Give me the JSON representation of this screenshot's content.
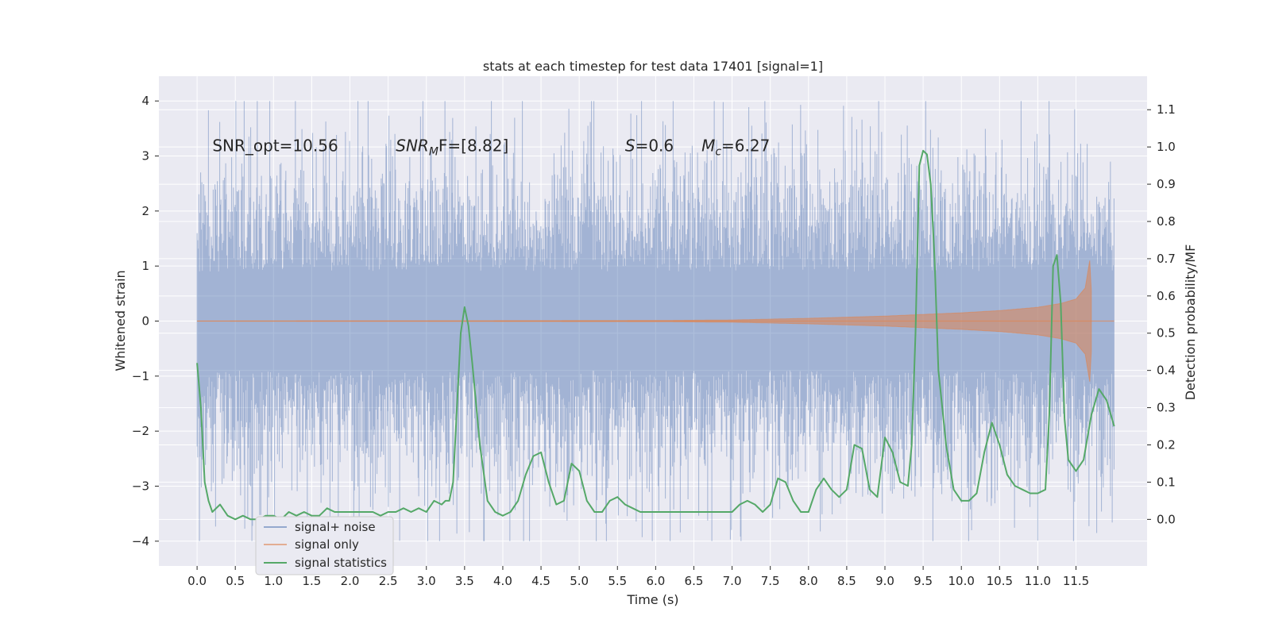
{
  "chart_data": {
    "type": "line",
    "title": "stats at each timestep for test data 17401 [signal=1]",
    "xlabel": "Time (s)",
    "ylabel": "Whitened strain",
    "ylabel_right": "Detection probability/MF",
    "xlim": [
      -0.5,
      12.43
    ],
    "ylim": [
      -4.45,
      4.45
    ],
    "ylim_right": [
      -0.125,
      1.19
    ],
    "x_ticks": [
      "0.0",
      "0.5",
      "1.0",
      "1.5",
      "2.0",
      "2.5",
      "3.0",
      "3.5",
      "4.0",
      "4.5",
      "5.0",
      "5.5",
      "6.0",
      "6.5",
      "7.0",
      "7.5",
      "8.0",
      "8.5",
      "9.0",
      "9.5",
      "10.0",
      "10.5",
      "11.0",
      "11.5"
    ],
    "y_ticks": [
      "4",
      "3",
      "2",
      "1",
      "0",
      "−1",
      "−2",
      "−3",
      "−4"
    ],
    "y_ticks_right": [
      "1.1",
      "1.0",
      "0.9",
      "0.8",
      "0.7",
      "0.6",
      "0.5",
      "0.4",
      "0.3",
      "0.2",
      "0.1",
      "0.0"
    ],
    "grid": true,
    "legend_position": "lower-left",
    "colors": {
      "plot_bg": "#eaeaf2",
      "grid": "#ffffff",
      "noise": "#4c72b0",
      "signal": "#dd8452",
      "stats": "#55a868"
    },
    "annotations": [
      {
        "key": "snr_opt",
        "text": "SNR_opt=10.56",
        "x": 0.2,
        "y": 3.2
      },
      {
        "key": "snr_mf",
        "text": "SNR",
        "sub": "M",
        "rest": "F=[8.82]",
        "x": 2.6,
        "y": 3.2
      },
      {
        "key": "s",
        "text": "S",
        "rest": "=0.6",
        "x": 5.6,
        "y": 3.2
      },
      {
        "key": "mc",
        "text": "M",
        "sub": "c",
        "rest": "=6.27",
        "x": 6.6,
        "y": 3.2
      }
    ],
    "series": [
      {
        "name": "signal+ noise",
        "kind": "noise_band",
        "x_range": [
          0.0,
          12.0
        ],
        "amplitude_typical": 1.9,
        "amplitude_max": 4.0
      },
      {
        "name": "signal only",
        "kind": "chirp_envelope",
        "x_range": [
          0.0,
          11.7
        ],
        "envelope": [
          [
            6.0,
            0.01
          ],
          [
            7.0,
            0.02
          ],
          [
            8.0,
            0.05
          ],
          [
            9.0,
            0.09
          ],
          [
            10.0,
            0.15
          ],
          [
            10.5,
            0.19
          ],
          [
            11.0,
            0.25
          ],
          [
            11.3,
            0.32
          ],
          [
            11.5,
            0.4
          ],
          [
            11.62,
            0.6
          ],
          [
            11.68,
            1.1
          ],
          [
            11.72,
            0.0
          ]
        ]
      },
      {
        "name": "signal statistics",
        "kind": "line_right_axis",
        "x": [
          0.0,
          0.05,
          0.1,
          0.15,
          0.2,
          0.3,
          0.4,
          0.5,
          0.6,
          0.7,
          0.8,
          0.9,
          1.0,
          1.1,
          1.2,
          1.3,
          1.4,
          1.5,
          1.6,
          1.7,
          1.8,
          1.9,
          2.0,
          2.1,
          2.2,
          2.3,
          2.4,
          2.5,
          2.6,
          2.7,
          2.8,
          2.9,
          3.0,
          3.1,
          3.2,
          3.25,
          3.3,
          3.35,
          3.4,
          3.45,
          3.5,
          3.55,
          3.6,
          3.7,
          3.8,
          3.9,
          4.0,
          4.1,
          4.2,
          4.3,
          4.4,
          4.5,
          4.6,
          4.7,
          4.8,
          4.9,
          5.0,
          5.1,
          5.2,
          5.3,
          5.4,
          5.5,
          5.6,
          5.7,
          5.8,
          5.9,
          6.0,
          6.1,
          6.2,
          6.3,
          6.4,
          6.5,
          6.6,
          6.7,
          6.8,
          6.9,
          7.0,
          7.1,
          7.2,
          7.3,
          7.4,
          7.5,
          7.6,
          7.7,
          7.8,
          7.9,
          8.0,
          8.1,
          8.2,
          8.3,
          8.4,
          8.5,
          8.6,
          8.7,
          8.8,
          8.9,
          9.0,
          9.1,
          9.2,
          9.3,
          9.35,
          9.4,
          9.45,
          9.5,
          9.55,
          9.6,
          9.65,
          9.7,
          9.75,
          9.8,
          9.85,
          9.9,
          10.0,
          10.1,
          10.2,
          10.3,
          10.4,
          10.5,
          10.6,
          10.7,
          10.8,
          10.9,
          11.0,
          11.1,
          11.15,
          11.2,
          11.25,
          11.3,
          11.35,
          11.4,
          11.5,
          11.6,
          11.7,
          11.8,
          11.9,
          12.0
        ],
        "y": [
          0.42,
          0.3,
          0.1,
          0.05,
          0.02,
          0.04,
          0.01,
          0.0,
          0.01,
          0.0,
          0.0,
          0.01,
          0.01,
          0.0,
          0.02,
          0.01,
          0.02,
          0.01,
          0.01,
          0.03,
          0.02,
          0.02,
          0.02,
          0.02,
          0.02,
          0.02,
          0.01,
          0.02,
          0.02,
          0.03,
          0.02,
          0.03,
          0.02,
          0.05,
          0.04,
          0.05,
          0.05,
          0.1,
          0.3,
          0.5,
          0.57,
          0.52,
          0.42,
          0.2,
          0.05,
          0.02,
          0.01,
          0.02,
          0.05,
          0.12,
          0.17,
          0.18,
          0.1,
          0.04,
          0.05,
          0.15,
          0.13,
          0.05,
          0.02,
          0.02,
          0.05,
          0.06,
          0.04,
          0.03,
          0.02,
          0.02,
          0.02,
          0.02,
          0.02,
          0.02,
          0.02,
          0.02,
          0.02,
          0.02,
          0.02,
          0.02,
          0.02,
          0.04,
          0.05,
          0.04,
          0.02,
          0.04,
          0.11,
          0.1,
          0.05,
          0.02,
          0.02,
          0.08,
          0.11,
          0.08,
          0.06,
          0.08,
          0.2,
          0.19,
          0.08,
          0.06,
          0.22,
          0.18,
          0.1,
          0.09,
          0.2,
          0.5,
          0.95,
          0.99,
          0.98,
          0.9,
          0.7,
          0.4,
          0.3,
          0.2,
          0.14,
          0.08,
          0.05,
          0.05,
          0.07,
          0.18,
          0.26,
          0.2,
          0.12,
          0.09,
          0.08,
          0.07,
          0.07,
          0.08,
          0.28,
          0.68,
          0.71,
          0.58,
          0.27,
          0.16,
          0.13,
          0.16,
          0.28,
          0.35,
          0.32,
          0.25
        ]
      }
    ]
  }
}
